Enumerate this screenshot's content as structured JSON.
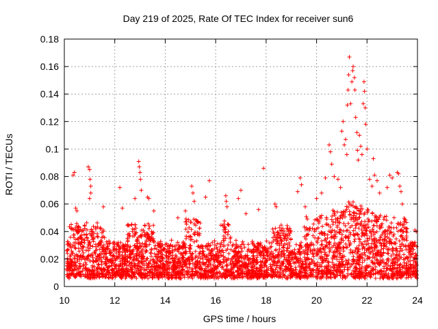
{
  "chart_data": {
    "type": "scatter",
    "title": "Day 219 of 2025, Rate Of TEC Index for receiver sun6",
    "xlabel": "GPS time / hours",
    "ylabel": "ROTI / TECUs",
    "xlim": [
      10,
      24
    ],
    "ylim": [
      0,
      0.18
    ],
    "xticks": [
      "10",
      "12",
      "14",
      "16",
      "18",
      "20",
      "22",
      "24"
    ],
    "yticks": [
      "0",
      "0.02",
      "0.04",
      "0.06",
      "0.08",
      "0.1",
      "0.12",
      "0.14",
      "0.16",
      "0.18"
    ],
    "grid": true,
    "marker": "+",
    "color": "#ff0000",
    "series": [
      {
        "name": "ROTI",
        "points": [
          [
            10.35,
            0.081
          ],
          [
            10.4,
            0.083
          ],
          [
            10.45,
            0.057
          ],
          [
            10.5,
            0.055
          ],
          [
            10.95,
            0.087
          ],
          [
            11.0,
            0.085
          ],
          [
            11.02,
            0.078
          ],
          [
            11.05,
            0.073
          ],
          [
            11.05,
            0.068
          ],
          [
            11.0,
            0.064
          ],
          [
            11.55,
            0.058
          ],
          [
            12.2,
            0.072
          ],
          [
            12.3,
            0.057
          ],
          [
            12.8,
            0.064
          ],
          [
            12.95,
            0.091
          ],
          [
            12.97,
            0.087
          ],
          [
            13.0,
            0.083
          ],
          [
            13.02,
            0.078
          ],
          [
            13.05,
            0.07
          ],
          [
            13.3,
            0.065
          ],
          [
            13.35,
            0.064
          ],
          [
            13.55,
            0.055
          ],
          [
            14.5,
            0.05
          ],
          [
            14.8,
            0.055
          ],
          [
            15.05,
            0.073
          ],
          [
            15.1,
            0.068
          ],
          [
            15.15,
            0.062
          ],
          [
            15.6,
            0.065
          ],
          [
            15.75,
            0.077
          ],
          [
            16.4,
            0.066
          ],
          [
            16.42,
            0.062
          ],
          [
            16.45,
            0.058
          ],
          [
            16.9,
            0.064
          ],
          [
            17.0,
            0.07
          ],
          [
            17.2,
            0.053
          ],
          [
            17.7,
            0.056
          ],
          [
            17.9,
            0.086
          ],
          [
            18.35,
            0.06
          ],
          [
            18.4,
            0.058
          ],
          [
            19.25,
            0.069
          ],
          [
            19.35,
            0.079
          ],
          [
            19.4,
            0.074
          ],
          [
            19.55,
            0.058
          ],
          [
            20.0,
            0.064
          ],
          [
            20.2,
            0.068
          ],
          [
            20.35,
            0.079
          ],
          [
            20.5,
            0.103
          ],
          [
            20.55,
            0.098
          ],
          [
            20.6,
            0.089
          ],
          [
            20.7,
            0.08
          ],
          [
            20.85,
            0.078
          ],
          [
            20.95,
            0.072
          ],
          [
            21.0,
            0.113
          ],
          [
            21.05,
            0.12
          ],
          [
            21.1,
            0.103
          ],
          [
            21.15,
            0.107
          ],
          [
            21.2,
            0.096
          ],
          [
            21.22,
            0.132
          ],
          [
            21.25,
            0.143
          ],
          [
            21.27,
            0.154
          ],
          [
            21.3,
            0.167
          ],
          [
            21.35,
            0.133
          ],
          [
            21.4,
            0.149
          ],
          [
            21.43,
            0.157
          ],
          [
            21.45,
            0.16
          ],
          [
            21.5,
            0.152
          ],
          [
            21.52,
            0.143
          ],
          [
            21.55,
            0.123
          ],
          [
            21.6,
            0.112
          ],
          [
            21.62,
            0.099
          ],
          [
            21.65,
            0.092
          ],
          [
            21.7,
            0.11
          ],
          [
            21.75,
            0.102
          ],
          [
            21.8,
            0.096
          ],
          [
            21.85,
            0.133
          ],
          [
            21.88,
            0.149
          ],
          [
            21.9,
            0.142
          ],
          [
            21.93,
            0.13
          ],
          [
            21.95,
            0.118
          ],
          [
            22.0,
            0.1
          ],
          [
            22.1,
            0.078
          ],
          [
            22.2,
            0.073
          ],
          [
            22.25,
            0.093
          ],
          [
            22.3,
            0.081
          ],
          [
            22.4,
            0.077
          ],
          [
            22.5,
            0.068
          ],
          [
            22.8,
            0.072
          ],
          [
            22.9,
            0.081
          ],
          [
            23.0,
            0.079
          ],
          [
            23.2,
            0.083
          ],
          [
            23.25,
            0.082
          ],
          [
            23.3,
            0.073
          ],
          [
            23.35,
            0.069
          ],
          [
            23.4,
            0.06
          ],
          [
            23.9,
            0.041
          ],
          [
            23.95,
            0.04
          ]
        ]
      }
    ],
    "band_note": "dense cloud of ROTI samples between 0.01 and 0.05 TECU/min across 10-24 h"
  }
}
